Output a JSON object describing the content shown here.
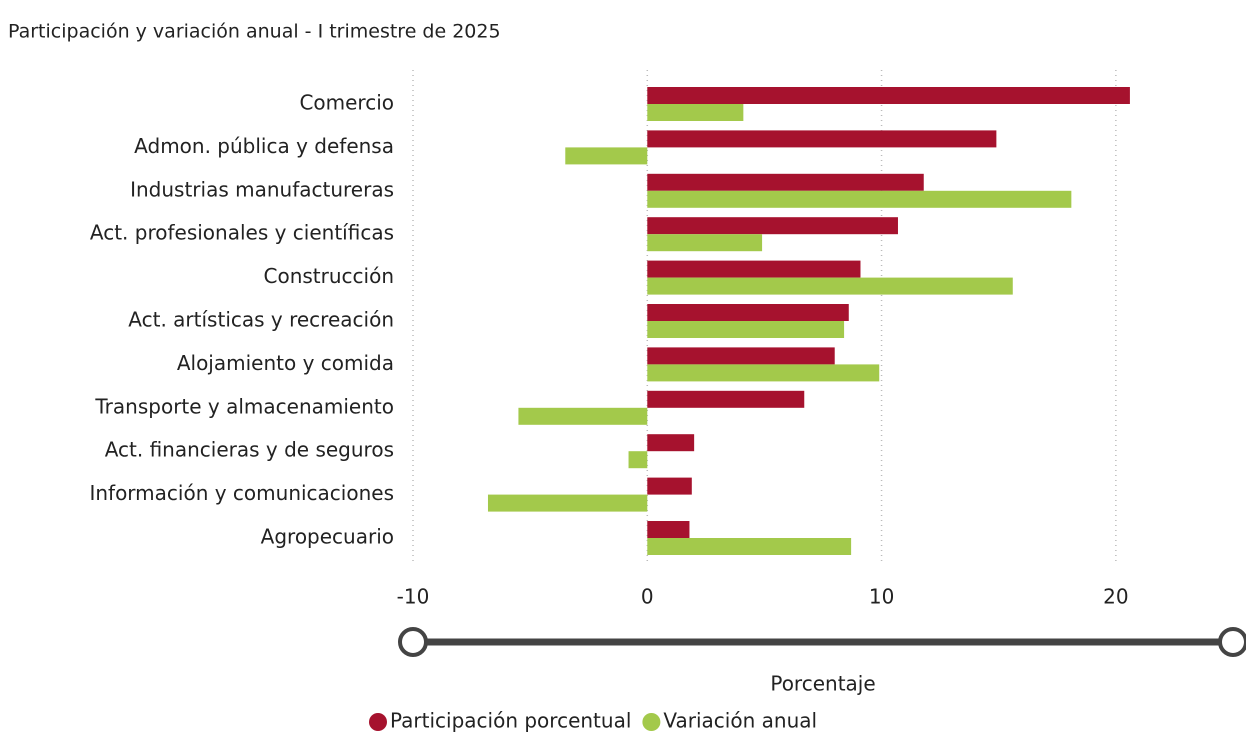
{
  "chart_data": {
    "type": "bar",
    "orientation": "horizontal",
    "title": "Participación y variación anual -  I trimestre de 2025",
    "xlabel": "Porcentaje",
    "categories": [
      "Comercio",
      "Admon. pública y defensa",
      "Industrias manufactureras",
      "Act. profesionales y científicas",
      "Construcción",
      "Act. artísticas y recreación",
      "Alojamiento y comida",
      "Transporte y almacenamiento",
      "Act. financieras y de seguros",
      "Información y comunicaciones",
      "Agropecuario"
    ],
    "series": [
      {
        "name": "Participación porcentual",
        "color": "#a6122e",
        "values": [
          20.6,
          14.9,
          11.8,
          10.7,
          9.1,
          8.6,
          8.0,
          6.7,
          2.0,
          1.9,
          1.8
        ]
      },
      {
        "name": "Variación anual",
        "color": "#a3c94b",
        "values": [
          4.1,
          -3.5,
          18.1,
          4.9,
          15.6,
          8.4,
          9.9,
          -5.5,
          -0.8,
          -6.8,
          8.7
        ]
      }
    ],
    "xlim": [
      -10,
      25
    ],
    "xticks": [
      -10,
      0,
      10,
      20
    ],
    "grid": true,
    "legend": "bottom"
  }
}
